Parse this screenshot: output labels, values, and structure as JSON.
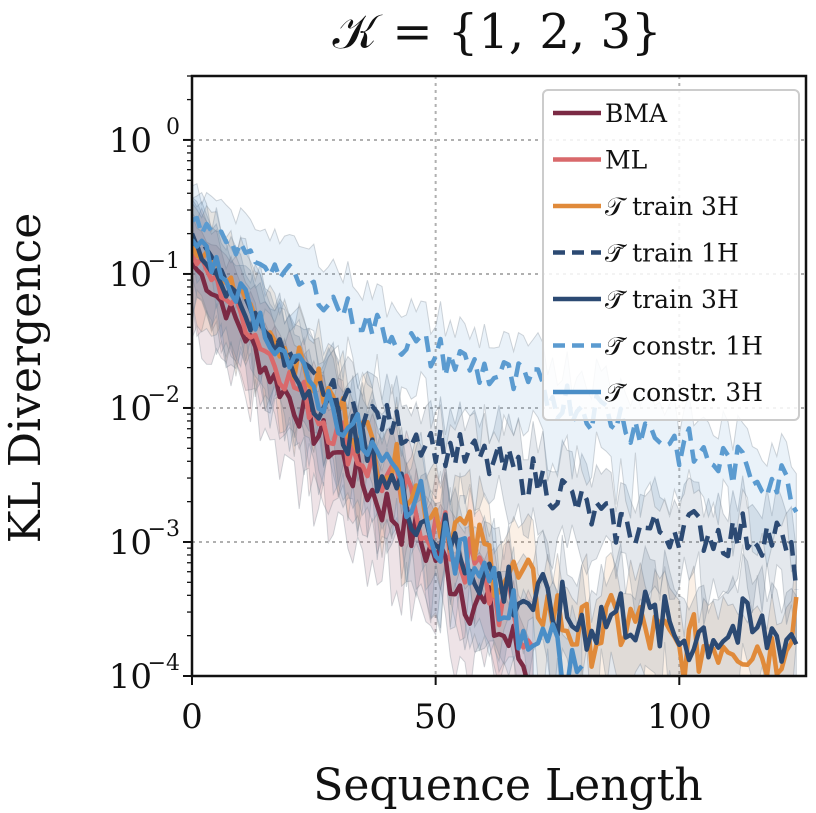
{
  "chart_data": {
    "type": "line",
    "title": "𝒦 = {1, 2, 3}",
    "xlabel": "Sequence Length",
    "ylabel": "KL Divergence",
    "xlim": [
      0,
      126
    ],
    "ylim": [
      0.0001,
      3.0
    ],
    "yscale": "log",
    "grid": true,
    "legend_position": "top-right",
    "x_ticks": [
      {
        "value": 0,
        "label": "0"
      },
      {
        "value": 50,
        "label": "50"
      },
      {
        "value": 100,
        "label": "100"
      }
    ],
    "y_ticks": [
      {
        "value": 1,
        "base": "10",
        "exp": "0"
      },
      {
        "value": 0.1,
        "base": "10",
        "exp": "−1"
      },
      {
        "value": 0.01,
        "base": "10",
        "exp": "−2"
      },
      {
        "value": 0.001,
        "base": "10",
        "exp": "−3"
      },
      {
        "value": 0.0001,
        "base": "10",
        "exp": "−4"
      }
    ],
    "series": [
      {
        "name": "BMA",
        "color": "#7b2a44",
        "dash": "solid",
        "x": [
          0,
          5,
          10,
          15,
          20,
          25,
          30,
          35,
          40,
          45,
          50,
          55,
          60,
          65,
          70
        ],
        "values": [
          0.12,
          0.07,
          0.04,
          0.02,
          0.012,
          0.007,
          0.0045,
          0.0028,
          0.0018,
          0.0012,
          0.0008,
          0.0005,
          0.0003,
          0.00018,
          0.0001
        ]
      },
      {
        "name": "ML",
        "color": "#d9696b",
        "dash": "solid",
        "x": [
          0,
          5,
          10,
          15,
          20,
          25,
          30,
          35,
          40,
          45,
          50,
          55,
          60,
          65,
          70
        ],
        "values": [
          0.14,
          0.085,
          0.05,
          0.028,
          0.016,
          0.01,
          0.0065,
          0.0042,
          0.0028,
          0.0019,
          0.0012,
          0.0008,
          0.0005,
          0.0003,
          0.00015
        ]
      },
      {
        "name": "𝒯 train 3H",
        "color": "#e08a3a",
        "dash": "solid",
        "x": [
          0,
          10,
          20,
          30,
          40,
          50,
          60,
          70,
          80,
          90,
          100,
          110,
          120,
          124
        ],
        "values": [
          0.16,
          0.07,
          0.025,
          0.01,
          0.004,
          0.0018,
          0.0008,
          0.0004,
          0.0002,
          0.00025,
          0.00015,
          0.0002,
          0.00015,
          0.00035
        ]
      },
      {
        "name": "𝒯̃ train 1H",
        "color": "#2c4a73",
        "dash": "dashed",
        "x": [
          0,
          5,
          10,
          15,
          20,
          25,
          30,
          35,
          40,
          45,
          50,
          55,
          60,
          65,
          70,
          75,
          80,
          85,
          90,
          95,
          100,
          105,
          110,
          115,
          120,
          124
        ],
        "values": [
          0.2,
          0.11,
          0.065,
          0.038,
          0.023,
          0.016,
          0.012,
          0.0095,
          0.008,
          0.0065,
          0.0055,
          0.0045,
          0.004,
          0.0035,
          0.003,
          0.0025,
          0.0018,
          0.0014,
          0.0013,
          0.0012,
          0.0013,
          0.0012,
          0.0011,
          0.0012,
          0.0011,
          0.0006
        ]
      },
      {
        "name": "𝒯̃ train 3H",
        "color": "#2c4a73",
        "dash": "solid",
        "x": [
          0,
          10,
          20,
          30,
          40,
          50,
          60,
          70,
          80,
          90,
          100,
          110,
          120,
          124
        ],
        "values": [
          0.17,
          0.06,
          0.02,
          0.008,
          0.003,
          0.0012,
          0.0006,
          0.00035,
          0.00025,
          0.0003,
          0.0002,
          0.00022,
          0.0002,
          0.0002
        ]
      },
      {
        "name": "𝒯̃ constr. 1H",
        "color": "#5b9bd0",
        "dash": "dashed",
        "x": [
          0,
          5,
          10,
          15,
          20,
          25,
          30,
          35,
          40,
          45,
          50,
          55,
          60,
          65,
          70,
          75,
          80,
          85,
          90,
          95,
          100,
          105,
          110,
          115,
          120,
          124
        ],
        "values": [
          0.25,
          0.19,
          0.15,
          0.12,
          0.095,
          0.075,
          0.058,
          0.045,
          0.036,
          0.03,
          0.025,
          0.022,
          0.019,
          0.016,
          0.014,
          0.012,
          0.0105,
          0.0092,
          0.0079,
          0.0065,
          0.0052,
          0.0043,
          0.0038,
          0.0033,
          0.003,
          0.0024
        ]
      },
      {
        "name": "𝒯̃ constr. 3H",
        "color": "#4a8ec7",
        "dash": "solid",
        "x": [
          0,
          10,
          20,
          30,
          40,
          50,
          60,
          70,
          80
        ],
        "values": [
          0.18,
          0.07,
          0.022,
          0.009,
          0.0035,
          0.0013,
          0.0005,
          0.00018,
          0.0001
        ]
      }
    ]
  }
}
